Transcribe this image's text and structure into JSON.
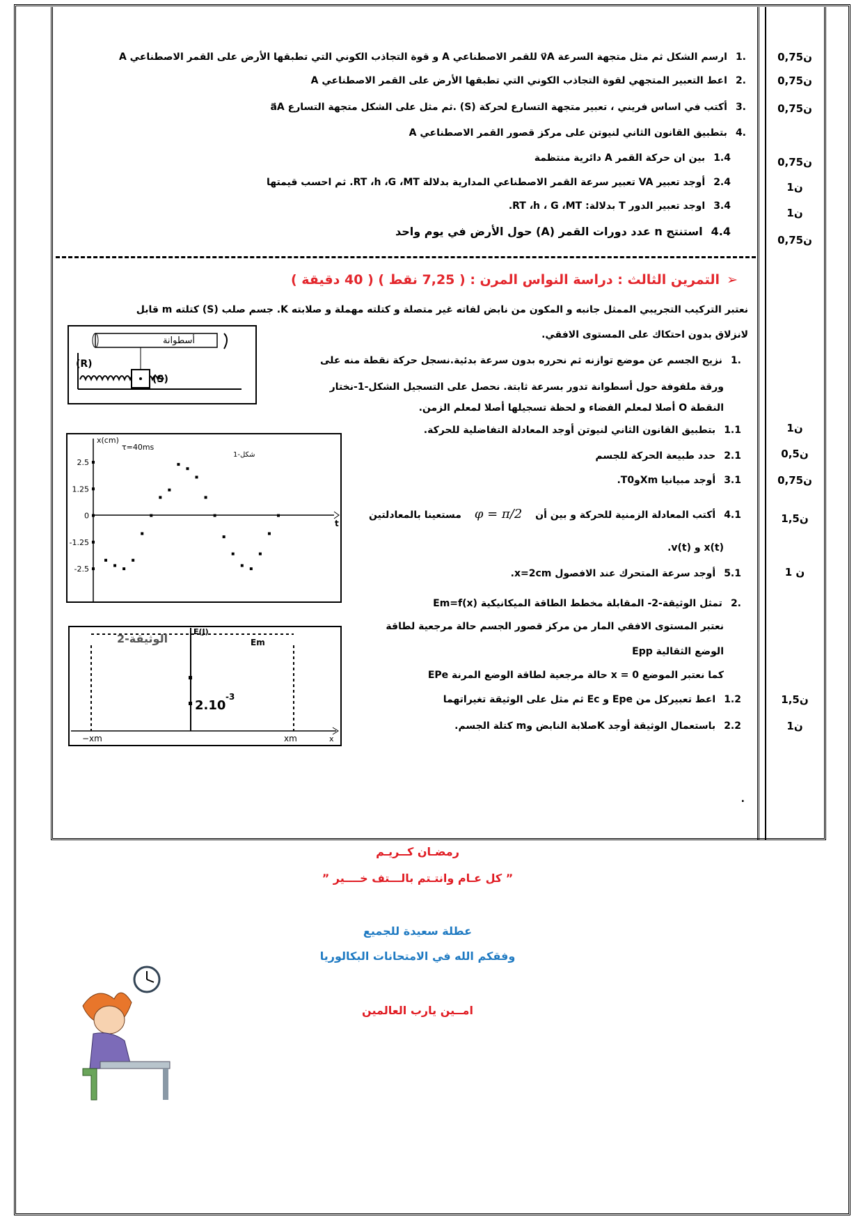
{
  "exercise2": {
    "items": [
      {
        "number": "1.",
        "text": "ارسم الشكل ثم مثل متجهة السرعة v⃗A للقمر الاصطناعي A و قوة التجاذب الكوني التي تطبقها الأرض على القمر الاصطناعي A",
        "points": "0,75ن"
      },
      {
        "number": "2.",
        "text": "اعط التعبير المتجهي لقوة التجاذب الكوني التي تطبقها الأرض على القمر الاصطناعي A",
        "points": "0,75ن"
      },
      {
        "number": "3.",
        "text": "أكتب في اساس فريني ، تعبير متجهة التسارع لحركة (S) .ثم مثل على الشكل متجهة التسارع a⃗A",
        "points": "0,75ن"
      },
      {
        "number": "4.",
        "text": "بتطبيق القانون الثاني لنيوتن على مركز قصور القمر الاصطناعي A"
      },
      {
        "number": "1.4",
        "text": "بين ان حركة القمر A دائرية منتظمة",
        "points": "0,75ن"
      },
      {
        "number": "2.4",
        "text": "أوجد تعبير VA تعبير سرعة القمر الاصطناعي المدارية بدلالة RT ،h ،G ،MT. ثم احسب قيمتها",
        "points": "1ن"
      },
      {
        "number": "3.4",
        "text": "اوجد تعبير الدور T بدلالة: RT ،h ، G ،MT.",
        "points": "1ن"
      },
      {
        "number": "4.4",
        "text": "استنتج n عدد دورات القمر (A) حول الأرض في يوم واحد",
        "points": "0,75ن"
      }
    ]
  },
  "exercise3": {
    "title": "التمرين الثالث : دراسة النواس المرن :",
    "score": "( 7,25 نقط )",
    "duration": "( 40 دقيقة )",
    "intro": [
      "نعتبر التركيب التجريبي الممثل جانبه و المكون من نابض لفاته غير متصلة و كتلته مهملة و صلابته K. جسم صلب (S) كتلته m قابل",
      "لانزلاق بدون احتكاك على المستوى الافقي."
    ],
    "setup": {
      "cylinder": "أسطوانة",
      "spring": "(R)",
      "body": "(S)"
    },
    "q1": {
      "number": "1.",
      "lines": [
        "نزيح الجسم عن موضع توازنه ثم نحرره بدون سرعة بدئية.نسجل حركة نقطة منه على",
        "ورقة ملفوفة حول أسطوانة تدور بسرعة ثابتة. نحصل على التسجيل الشكل-1-نختار",
        "النقطة O أصلا لمعلم الفضاء و لحظة تسجيلها أصلا لمعلم الزمن."
      ]
    },
    "sub1": [
      {
        "number": "1.1",
        "text": "بتطبيق القانون الثاني لنيوتن أوجد المعادلة التفاضلية للحركة.",
        "points": "1ن"
      },
      {
        "number": "2.1",
        "text": "حدد طبيعة الحركة للجسم",
        "points": "0,5ن"
      },
      {
        "number": "3.1",
        "text": "أوجد مبيانيا XmوT0.",
        "points": "0,75ن"
      },
      {
        "number": "4.1",
        "text": "أكتب المعادلة الزمنية للحركة و بين أن",
        "formula": "φ = π/2",
        "text_after": "مستعينا بالمعادلتين",
        "line2": "x(t) و v(t).",
        "points": "1,5ن"
      },
      {
        "number": "5.1",
        "text": "أوجد سرعة المتحرك عند الافصول x=2cm.",
        "points": "1 ن"
      }
    ],
    "q2": {
      "number": "2.",
      "lines": [
        "تمثل الوثيقة-2- المقابلة مخطط الطاقة الميكانيكية Em=f(x)",
        "نعتبر المستوى الافقي المار من مركز قصور الجسم حالة مرجعية لطاقة",
        "الوضع الثقالية Epp",
        "كما نعتبر الموضع x = 0 حالة مرجعية لطاقة الوضع المرنة EPe"
      ]
    },
    "sub2": [
      {
        "number": "1.2",
        "text": "اعط تعبيركل من Epe و Ec ثم مثل على الوثيقة تغيراتهما",
        "points": "1,5ن"
      },
      {
        "number": "2.2",
        "text": "باستعمال الوثيقة أوجد Kصلابة النابض وm كتلة الجسم.",
        "points": "1ن"
      }
    ],
    "end_mark": ".",
    "document2": {
      "title": "الوثيقة-2",
      "y_label": "E(J)",
      "line_label": "Em",
      "value": "2.10",
      "exponent": "-3",
      "left": "−xm",
      "right": "xm",
      "x_label": "x"
    }
  },
  "chart_data": {
    "type": "scatter",
    "title": "شكل-1",
    "y_label": "x(cm)",
    "x_label": "t",
    "annotation": "τ=40ms",
    "categories": [
      null,
      null,
      null,
      null,
      null,
      null,
      null,
      null,
      null,
      null,
      null,
      null,
      null,
      null,
      null,
      null,
      null,
      null,
      null,
      null
    ],
    "values": [
      -2.1,
      -2.35,
      -2.5,
      -2.1,
      -0.85,
      0,
      0.85,
      1.2,
      2.4,
      2.2,
      1.8,
      0.85,
      0,
      -1,
      -1.8,
      -2.35,
      -2.5,
      -1.8,
      -0.85,
      0
    ],
    "ylim": [
      -4.1,
      3.4
    ],
    "yticks": [
      2.5,
      1.25,
      0,
      -1.25,
      -2.5
    ],
    "color": "#000000"
  },
  "footer": {
    "greeting": "رمضـان كــريـم",
    "wish": "” كل عـام وانتـتم بالـــتف خــــير ”",
    "holiday": "عطلة سعيدة للجميع",
    "exams": "وفقكم الله في الامتحانات البكالوريا",
    "amen": "امــين يارب العالمين"
  }
}
